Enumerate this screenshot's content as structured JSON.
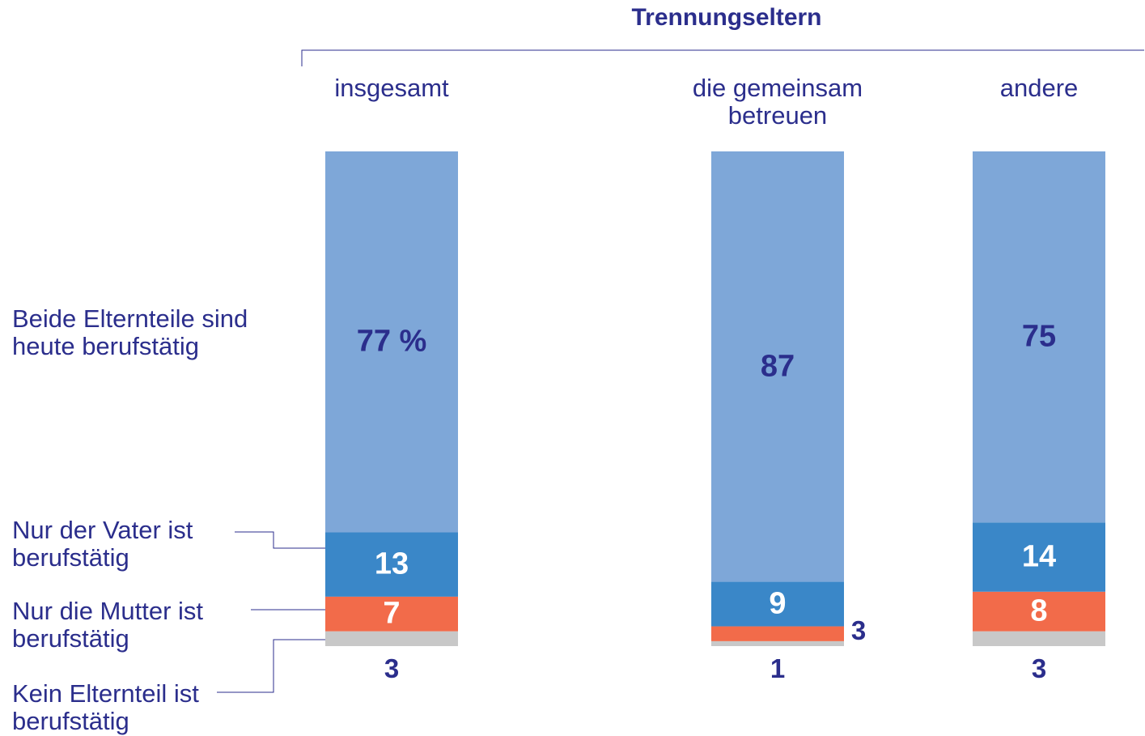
{
  "chart_data": {
    "type": "stacked-bar",
    "title": "Trennungseltern",
    "categories": [
      "insgesamt",
      "die gemeinsam betreuen",
      "andere"
    ],
    "ylim": [
      0,
      100
    ],
    "series": [
      {
        "name": "Kein Elternteil ist berufstätig",
        "color": "#c8c8c8",
        "values": [
          3,
          1,
          3
        ]
      },
      {
        "name": "Nur die Mutter ist berufstätig",
        "color": "#f26b4a",
        "values": [
          7,
          3,
          8
        ]
      },
      {
        "name": "Nur der Vater ist berufstätig",
        "color": "#3a87c8",
        "values": [
          13,
          9,
          14
        ]
      },
      {
        "name": "Beide Elternteile sind heute berufstätig",
        "color": "#7ea7d8",
        "values": [
          77,
          87,
          75
        ],
        "value_labels": [
          "77 %",
          "87",
          "75"
        ]
      }
    ]
  }
}
